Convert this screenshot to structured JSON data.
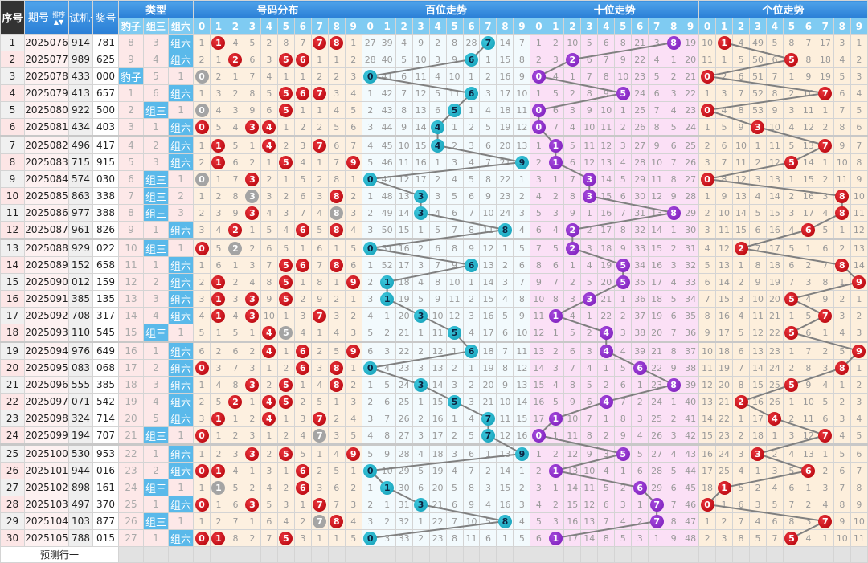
{
  "header": {
    "seq": "序号",
    "issue": "期号",
    "sort": "排序",
    "test": "试机号",
    "draw": "奖号",
    "type": "类型",
    "dist": "号码分布",
    "hundreds": "百位走势",
    "tens": "十位走势",
    "units": "个位走势",
    "type_cols": [
      "豹子",
      "组三",
      "组六"
    ]
  },
  "digits": [
    "0",
    "1",
    "2",
    "3",
    "4",
    "5",
    "6",
    "7",
    "8",
    "9"
  ],
  "rows": [
    {
      "seq": "1",
      "issue": "2025076",
      "test": "914",
      "draw": "781"
    },
    {
      "seq": "2",
      "issue": "2025077",
      "test": "989",
      "draw": "625"
    },
    {
      "seq": "3",
      "issue": "2025078",
      "test": "433",
      "draw": "000"
    },
    {
      "seq": "4",
      "issue": "2025079",
      "test": "413",
      "draw": "657"
    },
    {
      "seq": "5",
      "issue": "2025080",
      "test": "922",
      "draw": "500"
    },
    {
      "seq": "6",
      "issue": "2025081",
      "test": "434",
      "draw": "403"
    },
    {
      "seq": "7",
      "issue": "2025082",
      "test": "496",
      "draw": "417"
    },
    {
      "seq": "8",
      "issue": "2025083",
      "test": "715",
      "draw": "915"
    },
    {
      "seq": "9",
      "issue": "2025084",
      "test": "574",
      "draw": "030"
    },
    {
      "seq": "10",
      "issue": "2025085",
      "test": "863",
      "draw": "338"
    },
    {
      "seq": "11",
      "issue": "2025086",
      "test": "977",
      "draw": "388"
    },
    {
      "seq": "12",
      "issue": "2025087",
      "test": "961",
      "draw": "826"
    },
    {
      "seq": "13",
      "issue": "2025088",
      "test": "929",
      "draw": "022"
    },
    {
      "seq": "14",
      "issue": "2025089",
      "test": "152",
      "draw": "658"
    },
    {
      "seq": "15",
      "issue": "2025090",
      "test": "012",
      "draw": "159"
    },
    {
      "seq": "16",
      "issue": "2025091",
      "test": "385",
      "draw": "135"
    },
    {
      "seq": "17",
      "issue": "2025092",
      "test": "708",
      "draw": "317"
    },
    {
      "seq": "18",
      "issue": "2025093",
      "test": "110",
      "draw": "545"
    },
    {
      "seq": "19",
      "issue": "2025094",
      "test": "976",
      "draw": "649"
    },
    {
      "seq": "20",
      "issue": "2025095",
      "test": "083",
      "draw": "068"
    },
    {
      "seq": "21",
      "issue": "2025096",
      "test": "555",
      "draw": "385"
    },
    {
      "seq": "22",
      "issue": "2025097",
      "test": "071",
      "draw": "542"
    },
    {
      "seq": "23",
      "issue": "2025098",
      "test": "324",
      "draw": "714"
    },
    {
      "seq": "24",
      "issue": "2025099",
      "test": "194",
      "draw": "707"
    },
    {
      "seq": "25",
      "issue": "2025100",
      "test": "530",
      "draw": "953"
    },
    {
      "seq": "26",
      "issue": "2025101",
      "test": "944",
      "draw": "016"
    },
    {
      "seq": "27",
      "issue": "2025102",
      "test": "898",
      "draw": "161"
    },
    {
      "seq": "28",
      "issue": "2025103",
      "test": "497",
      "draw": "370"
    },
    {
      "seq": "29",
      "issue": "2025104",
      "test": "103",
      "draw": "877"
    },
    {
      "seq": "30",
      "issue": "2025105",
      "test": "788",
      "draw": "015"
    }
  ],
  "first_row_omissions": {
    "type": [
      8,
      3,
      null
    ],
    "dist": [
      1,
      null,
      4,
      5,
      2,
      8,
      7,
      null,
      null,
      1
    ],
    "hundreds": [
      27,
      39,
      4,
      9,
      2,
      8,
      28,
      null,
      14,
      7
    ],
    "tens": [
      1,
      2,
      10,
      5,
      6,
      8,
      21,
      3,
      null,
      19
    ],
    "units": [
      10,
      null,
      4,
      49,
      5,
      8,
      7,
      17,
      3,
      1
    ]
  },
  "footer": {
    "predict_label": "预测行一"
  },
  "colors": {
    "hundreds_ball": "#1ab0c8",
    "tens_ball": "#8a2bc8",
    "units_ball": "#c8000a",
    "dist_ball": "#c8000a",
    "repeat_ball": "#a4a4a4",
    "type_hit": "#5ab9ea",
    "trend_line": "#808080"
  }
}
